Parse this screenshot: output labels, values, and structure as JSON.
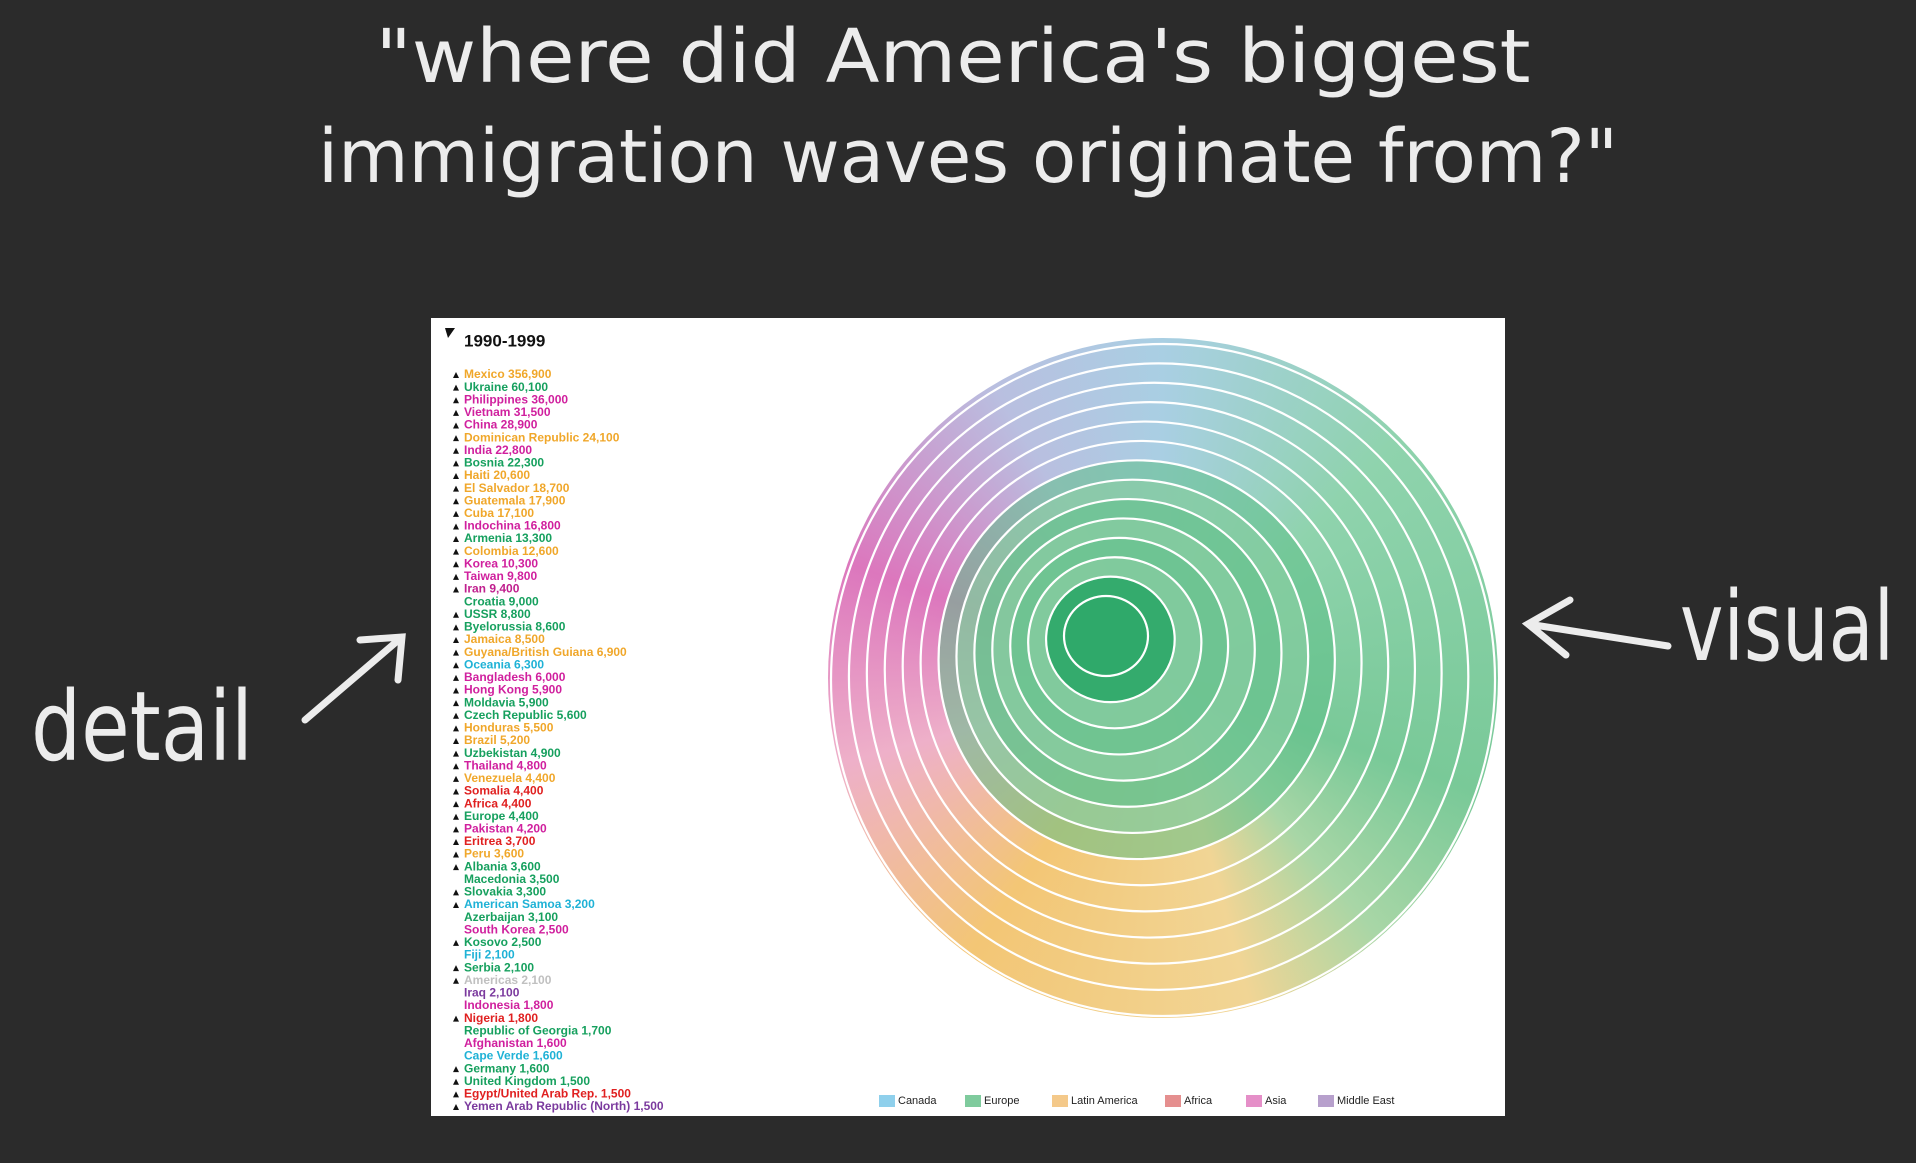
{
  "title_lines": [
    "\"where did America's biggest",
    "immigration waves originate from?\""
  ],
  "annotations": {
    "detail": "detail",
    "visual": "visual"
  },
  "panel": {
    "period": "1990-1999",
    "items": [
      {
        "text": "Mexico 356,900",
        "color": "#f0a72a",
        "expandable": true
      },
      {
        "text": "Ukraine 60,100",
        "color": "#16a05e",
        "expandable": true
      },
      {
        "text": "Philippines 36,000",
        "color": "#d0209e",
        "expandable": true
      },
      {
        "text": "Vietnam 31,500",
        "color": "#d0209e",
        "expandable": true
      },
      {
        "text": "China 28,900",
        "color": "#d0209e",
        "expandable": true
      },
      {
        "text": "Dominican Republic 24,100",
        "color": "#f0a72a",
        "expandable": true
      },
      {
        "text": "India 22,800",
        "color": "#d0209e",
        "expandable": true
      },
      {
        "text": "Bosnia 22,300",
        "color": "#16a05e",
        "expandable": true
      },
      {
        "text": "Haiti 20,600",
        "color": "#f0a72a",
        "expandable": true
      },
      {
        "text": "El Salvador 18,700",
        "color": "#f0a72a",
        "expandable": true
      },
      {
        "text": "Guatemala 17,900",
        "color": "#f0a72a",
        "expandable": true
      },
      {
        "text": "Cuba 17,100",
        "color": "#f0a72a",
        "expandable": true
      },
      {
        "text": "Indochina 16,800",
        "color": "#d0209e",
        "expandable": true
      },
      {
        "text": "Armenia 13,300",
        "color": "#16a05e",
        "expandable": true
      },
      {
        "text": "Colombia 12,600",
        "color": "#f0a72a",
        "expandable": true
      },
      {
        "text": "Korea 10,300",
        "color": "#d0209e",
        "expandable": true
      },
      {
        "text": "Taiwan 9,800",
        "color": "#d0209e",
        "expandable": true
      },
      {
        "text": "Iran 9,400",
        "color": "#c0208e",
        "expandable": true
      },
      {
        "text": "Croatia 9,000",
        "color": "#16a05e",
        "expandable": false
      },
      {
        "text": "USSR 8,800",
        "color": "#16a05e",
        "expandable": true
      },
      {
        "text": "Byelorussia 8,600",
        "color": "#16a05e",
        "expandable": true
      },
      {
        "text": "Jamaica 8,500",
        "color": "#f0a72a",
        "expandable": true
      },
      {
        "text": "Guyana/British Guiana 6,900",
        "color": "#f0a72a",
        "expandable": true
      },
      {
        "text": "Oceania 6,300",
        "color": "#1fb2d6",
        "expandable": true
      },
      {
        "text": "Bangladesh 6,000",
        "color": "#d0209e",
        "expandable": true
      },
      {
        "text": "Hong Kong 5,900",
        "color": "#d0209e",
        "expandable": true
      },
      {
        "text": "Moldavia 5,900",
        "color": "#16a05e",
        "expandable": true
      },
      {
        "text": "Czech Republic 5,600",
        "color": "#16a05e",
        "expandable": true
      },
      {
        "text": "Honduras 5,500",
        "color": "#f0a72a",
        "expandable": true
      },
      {
        "text": "Brazil 5,200",
        "color": "#f0a72a",
        "expandable": true
      },
      {
        "text": "Uzbekistan 4,900",
        "color": "#16a05e",
        "expandable": true
      },
      {
        "text": "Thailand 4,800",
        "color": "#d0209e",
        "expandable": true
      },
      {
        "text": "Venezuela 4,400",
        "color": "#f0a72a",
        "expandable": true
      },
      {
        "text": "Somalia 4,400",
        "color": "#e02020",
        "expandable": true
      },
      {
        "text": "Africa 4,400",
        "color": "#e02020",
        "expandable": true
      },
      {
        "text": "Europe 4,400",
        "color": "#16a05e",
        "expandable": true
      },
      {
        "text": "Pakistan 4,200",
        "color": "#d0209e",
        "expandable": true
      },
      {
        "text": "Eritrea 3,700",
        "color": "#e02020",
        "expandable": true
      },
      {
        "text": "Peru 3,600",
        "color": "#f0a72a",
        "expandable": true
      },
      {
        "text": "Albania 3,600",
        "color": "#16a05e",
        "expandable": true
      },
      {
        "text": "Macedonia 3,500",
        "color": "#16a05e",
        "expandable": false
      },
      {
        "text": "Slovakia 3,300",
        "color": "#16a05e",
        "expandable": true
      },
      {
        "text": "American Samoa 3,200",
        "color": "#1fb2d6",
        "expandable": true
      },
      {
        "text": "Azerbaijan 3,100",
        "color": "#16a05e",
        "expandable": false
      },
      {
        "text": "South Korea 2,500",
        "color": "#d0209e",
        "expandable": false
      },
      {
        "text": "Kosovo 2,500",
        "color": "#16a05e",
        "expandable": true
      },
      {
        "text": "Fiji 2,100",
        "color": "#1fb2d6",
        "expandable": false
      },
      {
        "text": "Serbia 2,100",
        "color": "#16a05e",
        "expandable": true
      },
      {
        "text": "Americas 2,100",
        "color": "#c0c0c0",
        "expandable": true
      },
      {
        "text": "Iraq 2,100",
        "color": "#7b3a9e",
        "expandable": false
      },
      {
        "text": "Indonesia 1,800",
        "color": "#d0209e",
        "expandable": false
      },
      {
        "text": "Nigeria 1,800",
        "color": "#e02020",
        "expandable": true
      },
      {
        "text": "Republic of Georgia 1,700",
        "color": "#16a05e",
        "expandable": false
      },
      {
        "text": "Afghanistan 1,600",
        "color": "#d0209e",
        "expandable": false
      },
      {
        "text": "Cape Verde 1,600",
        "color": "#1fb2d6",
        "expandable": false
      },
      {
        "text": "Germany 1,600",
        "color": "#16a05e",
        "expandable": true
      },
      {
        "text": "United Kingdom 1,500",
        "color": "#16a05e",
        "expandable": true
      },
      {
        "text": "Egypt/United Arab Rep. 1,500",
        "color": "#e02020",
        "expandable": true
      },
      {
        "text": "Yemen Arab Republic (North) 1,500",
        "color": "#7b3a9e",
        "expandable": true
      }
    ],
    "legend": [
      {
        "name": "Canada",
        "color": "#8fd0ec"
      },
      {
        "name": "Europe",
        "color": "#7fcb9d"
      },
      {
        "name": "Latin America",
        "color": "#f4c98a"
      },
      {
        "name": "Africa",
        "color": "#e58f8f"
      },
      {
        "name": "Asia",
        "color": "#e58fc8"
      },
      {
        "name": "Middle East",
        "color": "#b7a0cc"
      }
    ]
  }
}
